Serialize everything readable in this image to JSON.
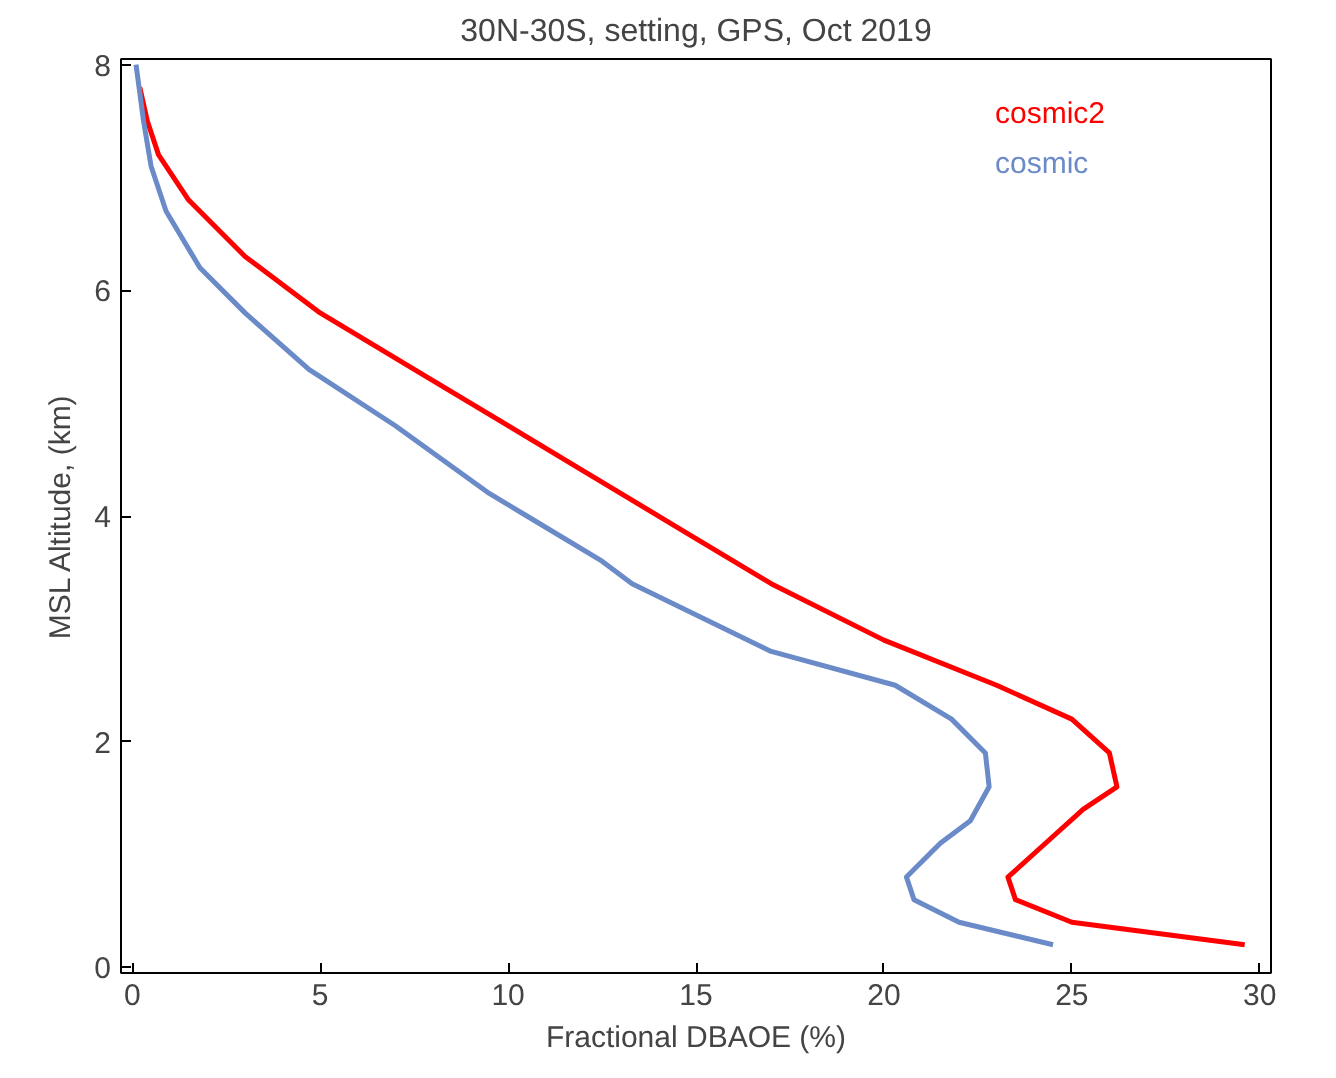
{
  "chart_data": {
    "type": "line",
    "title": "30N-30S, setting, GPS, Oct 2019",
    "xlabel": "Fractional DBAOE (%)",
    "ylabel": "MSL Altitude, (km)",
    "xlim": [
      -0.3,
      30.3
    ],
    "ylim": [
      -0.05,
      8.05
    ],
    "xticks": [
      0,
      5,
      10,
      15,
      20,
      25,
      30
    ],
    "yticks": [
      0,
      2,
      4,
      6,
      8
    ],
    "grid": false,
    "legend": "top right",
    "series": [
      {
        "name": "cosmic2",
        "color": "#ff0000",
        "x": [
          29.6,
          25.0,
          23.5,
          23.3,
          24.3,
          25.3,
          26.2,
          26.0,
          25.0,
          23.0,
          20.0,
          17.0,
          14.5,
          12.0,
          10.0,
          7.5,
          5.0,
          3.0,
          1.5,
          0.7,
          0.4,
          0.2
        ],
        "values": [
          0.2,
          0.4,
          0.6,
          0.8,
          1.1,
          1.4,
          1.6,
          1.9,
          2.2,
          2.5,
          2.9,
          3.4,
          3.9,
          4.4,
          4.8,
          5.3,
          5.8,
          6.3,
          6.8,
          7.2,
          7.5,
          7.8
        ]
      },
      {
        "name": "cosmic",
        "color": "#6a8ac8",
        "x": [
          24.5,
          22.0,
          20.8,
          20.6,
          21.5,
          22.3,
          22.8,
          22.7,
          21.8,
          20.3,
          17.0,
          13.3,
          12.5,
          10.5,
          9.5,
          7.0,
          4.7,
          3.0,
          1.8,
          0.9,
          0.5,
          0.3,
          0.1
        ],
        "values": [
          0.2,
          0.4,
          0.6,
          0.8,
          1.1,
          1.3,
          1.6,
          1.9,
          2.2,
          2.5,
          2.8,
          3.4,
          3.6,
          4.0,
          4.2,
          4.8,
          5.3,
          5.8,
          6.2,
          6.7,
          7.1,
          7.5,
          8.0
        ]
      }
    ]
  }
}
